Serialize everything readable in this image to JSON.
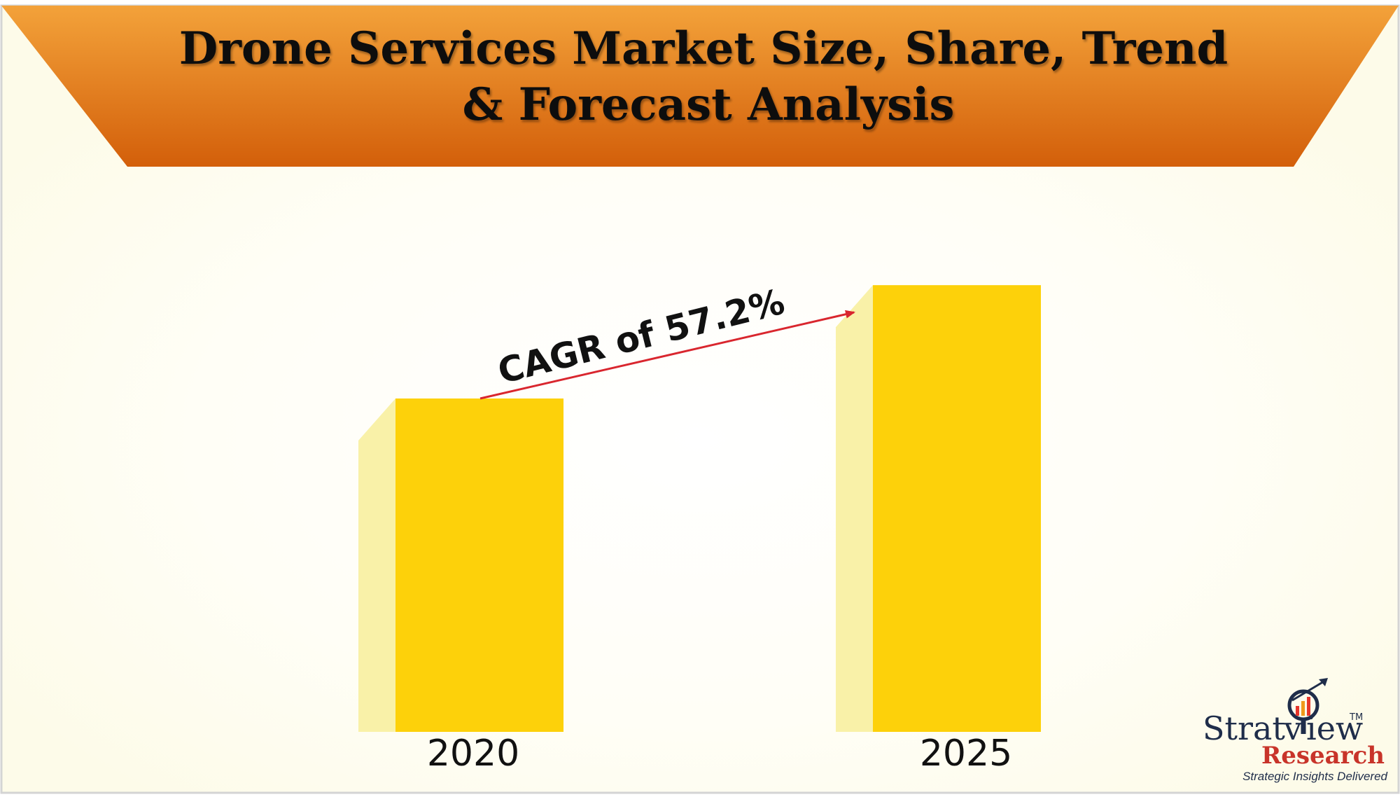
{
  "chart_data": {
    "type": "bar",
    "title": "Drone Services Market Size, Share, Trend & Forecast Analysis",
    "title_lines": [
      "Drone Services Market Size, Share, Trend",
      "& Forecast Analysis"
    ],
    "categories": [
      "2020",
      "2025"
    ],
    "values": [
      1.0,
      1.34
    ],
    "annotation": "CAGR of 57.2%",
    "grid": false,
    "colors": {
      "bar": "#fdd10a",
      "bar_side": "#f9f1a8",
      "banner_top": "#f3a23a",
      "banner_bottom": "#d35f0a",
      "arrow": "#d9262e",
      "background": "#fffef3"
    }
  },
  "brand": {
    "name_part1": "Strat",
    "name_part2": "iew",
    "name_part2_prefix": "v",
    "research": "Research",
    "tagline": "Strategic Insights Delivered",
    "tm": "TM"
  }
}
